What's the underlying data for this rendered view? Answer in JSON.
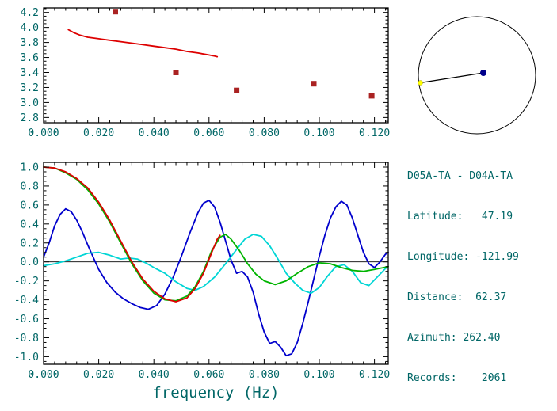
{
  "colors": {
    "annotation_text": "#006666",
    "frame": "#000000",
    "background": "#ffffff"
  },
  "info_panel": {
    "title": "D05A-TA - D04A-TA",
    "lines": [
      "Latitude:   47.19",
      "Longitude: -121.99",
      "Distance:  62.37",
      "Azimuth: 262.40",
      "Records:    2061"
    ]
  },
  "compass": {
    "azimuth_deg": 262.4,
    "circle_color": "#000000",
    "line_color": "#000000",
    "center_dot_color": "#00008b",
    "edge_dot_color": "#ffff00"
  },
  "chart_data": [
    {
      "id": "dispersion",
      "type": "line",
      "title": "",
      "xlabel": "",
      "ylabel": "",
      "xlim": [
        0,
        0.125
      ],
      "ylim": [
        2.73,
        4.26
      ],
      "grid": false,
      "zero_line": false,
      "x_ticks": [
        0.0,
        0.02,
        0.04,
        0.06,
        0.08,
        0.1,
        0.12
      ],
      "x_tick_labels": [
        "0.000",
        "0.020",
        "0.040",
        "0.060",
        "0.080",
        "0.100",
        "0.120"
      ],
      "y_ticks": [
        2.8,
        3.0,
        3.2,
        3.4,
        3.6,
        3.8,
        4.0,
        4.2
      ],
      "y_tick_labels": [
        "2.8",
        "3.0",
        "3.2",
        "3.4",
        "3.6",
        "3.8",
        "4.0",
        "4.2"
      ],
      "series": [
        {
          "name": "dispersion-curve",
          "type": "line",
          "color": "#dd0000",
          "points": [
            [
              0.009,
              3.97
            ],
            [
              0.011,
              3.93
            ],
            [
              0.013,
              3.9
            ],
            [
              0.016,
              3.87
            ],
            [
              0.02,
              3.85
            ],
            [
              0.024,
              3.83
            ],
            [
              0.028,
              3.81
            ],
            [
              0.032,
              3.79
            ],
            [
              0.036,
              3.77
            ],
            [
              0.04,
              3.75
            ],
            [
              0.044,
              3.73
            ],
            [
              0.048,
              3.71
            ],
            [
              0.052,
              3.68
            ],
            [
              0.056,
              3.66
            ],
            [
              0.059,
              3.64
            ],
            [
              0.062,
              3.62
            ],
            [
              0.063,
              3.61
            ]
          ]
        },
        {
          "name": "dispersion-picks",
          "type": "scatter",
          "marker": "square",
          "color": "#aa2222",
          "points": [
            [
              0.026,
              4.21
            ],
            [
              0.048,
              3.4
            ],
            [
              0.07,
              3.16
            ],
            [
              0.098,
              3.25
            ],
            [
              0.119,
              3.09
            ]
          ]
        }
      ]
    },
    {
      "id": "correlation",
      "type": "line",
      "title": "",
      "xlabel": "frequency (Hz)",
      "ylabel": "",
      "xlim": [
        0,
        0.125
      ],
      "ylim": [
        -1.08,
        1.05
      ],
      "grid": false,
      "zero_line": true,
      "x_ticks": [
        0.0,
        0.02,
        0.04,
        0.06,
        0.08,
        0.1,
        0.12
      ],
      "x_tick_labels": [
        "0.000",
        "0.020",
        "0.040",
        "0.060",
        "0.080",
        "0.100",
        "0.120"
      ],
      "y_ticks": [
        -1.0,
        -0.8,
        -0.6,
        -0.4,
        -0.2,
        0.0,
        0.2,
        0.4,
        0.6,
        0.8,
        1.0
      ],
      "y_tick_labels": [
        "-1.0",
        "-0.8",
        "-0.6",
        "-0.4",
        "-0.2",
        "0.0",
        "0.2",
        "0.4",
        "0.6",
        "0.8",
        "1.0"
      ],
      "series": [
        {
          "name": "blue-curve",
          "type": "line",
          "color": "#0000cc",
          "points": [
            [
              0,
              0.05
            ],
            [
              0.002,
              0.2
            ],
            [
              0.004,
              0.38
            ],
            [
              0.006,
              0.5
            ],
            [
              0.008,
              0.56
            ],
            [
              0.01,
              0.53
            ],
            [
              0.012,
              0.44
            ],
            [
              0.014,
              0.32
            ],
            [
              0.016,
              0.18
            ],
            [
              0.018,
              0.05
            ],
            [
              0.02,
              -0.08
            ],
            [
              0.023,
              -0.22
            ],
            [
              0.026,
              -0.32
            ],
            [
              0.029,
              -0.39
            ],
            [
              0.032,
              -0.44
            ],
            [
              0.035,
              -0.48
            ],
            [
              0.038,
              -0.5
            ],
            [
              0.041,
              -0.46
            ],
            [
              0.044,
              -0.34
            ],
            [
              0.047,
              -0.16
            ],
            [
              0.05,
              0.06
            ],
            [
              0.053,
              0.3
            ],
            [
              0.056,
              0.52
            ],
            [
              0.058,
              0.62
            ],
            [
              0.06,
              0.65
            ],
            [
              0.062,
              0.58
            ],
            [
              0.064,
              0.42
            ],
            [
              0.066,
              0.22
            ],
            [
              0.068,
              0.02
            ],
            [
              0.07,
              -0.12
            ],
            [
              0.072,
              -0.1
            ],
            [
              0.074,
              -0.16
            ],
            [
              0.076,
              -0.32
            ],
            [
              0.078,
              -0.55
            ],
            [
              0.08,
              -0.74
            ],
            [
              0.082,
              -0.86
            ],
            [
              0.084,
              -0.84
            ],
            [
              0.086,
              -0.9
            ],
            [
              0.088,
              -0.99
            ],
            [
              0.09,
              -0.97
            ],
            [
              0.092,
              -0.85
            ],
            [
              0.094,
              -0.65
            ],
            [
              0.096,
              -0.42
            ],
            [
              0.098,
              -0.18
            ],
            [
              0.1,
              0.06
            ],
            [
              0.102,
              0.28
            ],
            [
              0.104,
              0.46
            ],
            [
              0.106,
              0.58
            ],
            [
              0.108,
              0.64
            ],
            [
              0.11,
              0.6
            ],
            [
              0.112,
              0.46
            ],
            [
              0.114,
              0.28
            ],
            [
              0.116,
              0.1
            ],
            [
              0.118,
              -0.02
            ],
            [
              0.12,
              -0.06
            ],
            [
              0.122,
              0.0
            ],
            [
              0.124,
              0.08
            ],
            [
              0.125,
              0.1
            ]
          ]
        },
        {
          "name": "cyan-curve",
          "type": "line",
          "color": "#00d5d5",
          "points": [
            [
              0,
              -0.04
            ],
            [
              0.004,
              -0.02
            ],
            [
              0.008,
              0.01
            ],
            [
              0.012,
              0.05
            ],
            [
              0.016,
              0.09
            ],
            [
              0.02,
              0.1
            ],
            [
              0.024,
              0.07
            ],
            [
              0.028,
              0.03
            ],
            [
              0.031,
              0.04
            ],
            [
              0.034,
              0.03
            ],
            [
              0.037,
              -0.01
            ],
            [
              0.04,
              -0.06
            ],
            [
              0.044,
              -0.12
            ],
            [
              0.048,
              -0.21
            ],
            [
              0.052,
              -0.28
            ],
            [
              0.055,
              -0.3
            ],
            [
              0.058,
              -0.26
            ],
            [
              0.062,
              -0.16
            ],
            [
              0.066,
              -0.02
            ],
            [
              0.07,
              0.13
            ],
            [
              0.073,
              0.24
            ],
            [
              0.076,
              0.29
            ],
            [
              0.079,
              0.27
            ],
            [
              0.082,
              0.17
            ],
            [
              0.085,
              0.03
            ],
            [
              0.088,
              -0.12
            ],
            [
              0.091,
              -0.22
            ],
            [
              0.094,
              -0.3
            ],
            [
              0.097,
              -0.33
            ],
            [
              0.1,
              -0.27
            ],
            [
              0.103,
              -0.15
            ],
            [
              0.106,
              -0.05
            ],
            [
              0.109,
              -0.03
            ],
            [
              0.112,
              -0.1
            ],
            [
              0.115,
              -0.22
            ],
            [
              0.118,
              -0.25
            ],
            [
              0.121,
              -0.16
            ],
            [
              0.124,
              -0.07
            ],
            [
              0.125,
              -0.05
            ]
          ]
        },
        {
          "name": "green-curve",
          "type": "line",
          "color": "#00b400",
          "points": [
            [
              0,
              1.0
            ],
            [
              0.004,
              0.99
            ],
            [
              0.008,
              0.94
            ],
            [
              0.012,
              0.87
            ],
            [
              0.016,
              0.76
            ],
            [
              0.02,
              0.61
            ],
            [
              0.024,
              0.42
            ],
            [
              0.028,
              0.2
            ],
            [
              0.032,
              -0.02
            ],
            [
              0.036,
              -0.2
            ],
            [
              0.04,
              -0.33
            ],
            [
              0.044,
              -0.4
            ],
            [
              0.048,
              -0.41
            ],
            [
              0.052,
              -0.36
            ],
            [
              0.055,
              -0.26
            ],
            [
              0.058,
              -0.1
            ],
            [
              0.061,
              0.12
            ],
            [
              0.064,
              0.26
            ],
            [
              0.066,
              0.29
            ],
            [
              0.068,
              0.24
            ],
            [
              0.071,
              0.12
            ],
            [
              0.074,
              -0.02
            ],
            [
              0.077,
              -0.13
            ],
            [
              0.08,
              -0.2
            ],
            [
              0.084,
              -0.24
            ],
            [
              0.088,
              -0.2
            ],
            [
              0.092,
              -0.12
            ],
            [
              0.096,
              -0.05
            ],
            [
              0.1,
              -0.01
            ],
            [
              0.104,
              -0.02
            ],
            [
              0.108,
              -0.06
            ],
            [
              0.112,
              -0.09
            ],
            [
              0.116,
              -0.1
            ],
            [
              0.12,
              -0.08
            ],
            [
              0.125,
              -0.05
            ]
          ]
        },
        {
          "name": "red-curve",
          "type": "line",
          "color": "#dd0000",
          "points": [
            [
              0,
              1.0
            ],
            [
              0.004,
              0.99
            ],
            [
              0.008,
              0.95
            ],
            [
              0.012,
              0.88
            ],
            [
              0.016,
              0.78
            ],
            [
              0.02,
              0.63
            ],
            [
              0.024,
              0.44
            ],
            [
              0.028,
              0.22
            ],
            [
              0.032,
              0.0
            ],
            [
              0.036,
              -0.18
            ],
            [
              0.04,
              -0.31
            ],
            [
              0.044,
              -0.39
            ],
            [
              0.048,
              -0.42
            ],
            [
              0.052,
              -0.38
            ],
            [
              0.055,
              -0.28
            ],
            [
              0.058,
              -0.12
            ],
            [
              0.061,
              0.1
            ],
            [
              0.063,
              0.24
            ],
            [
              0.064,
              0.28
            ]
          ]
        }
      ]
    }
  ]
}
